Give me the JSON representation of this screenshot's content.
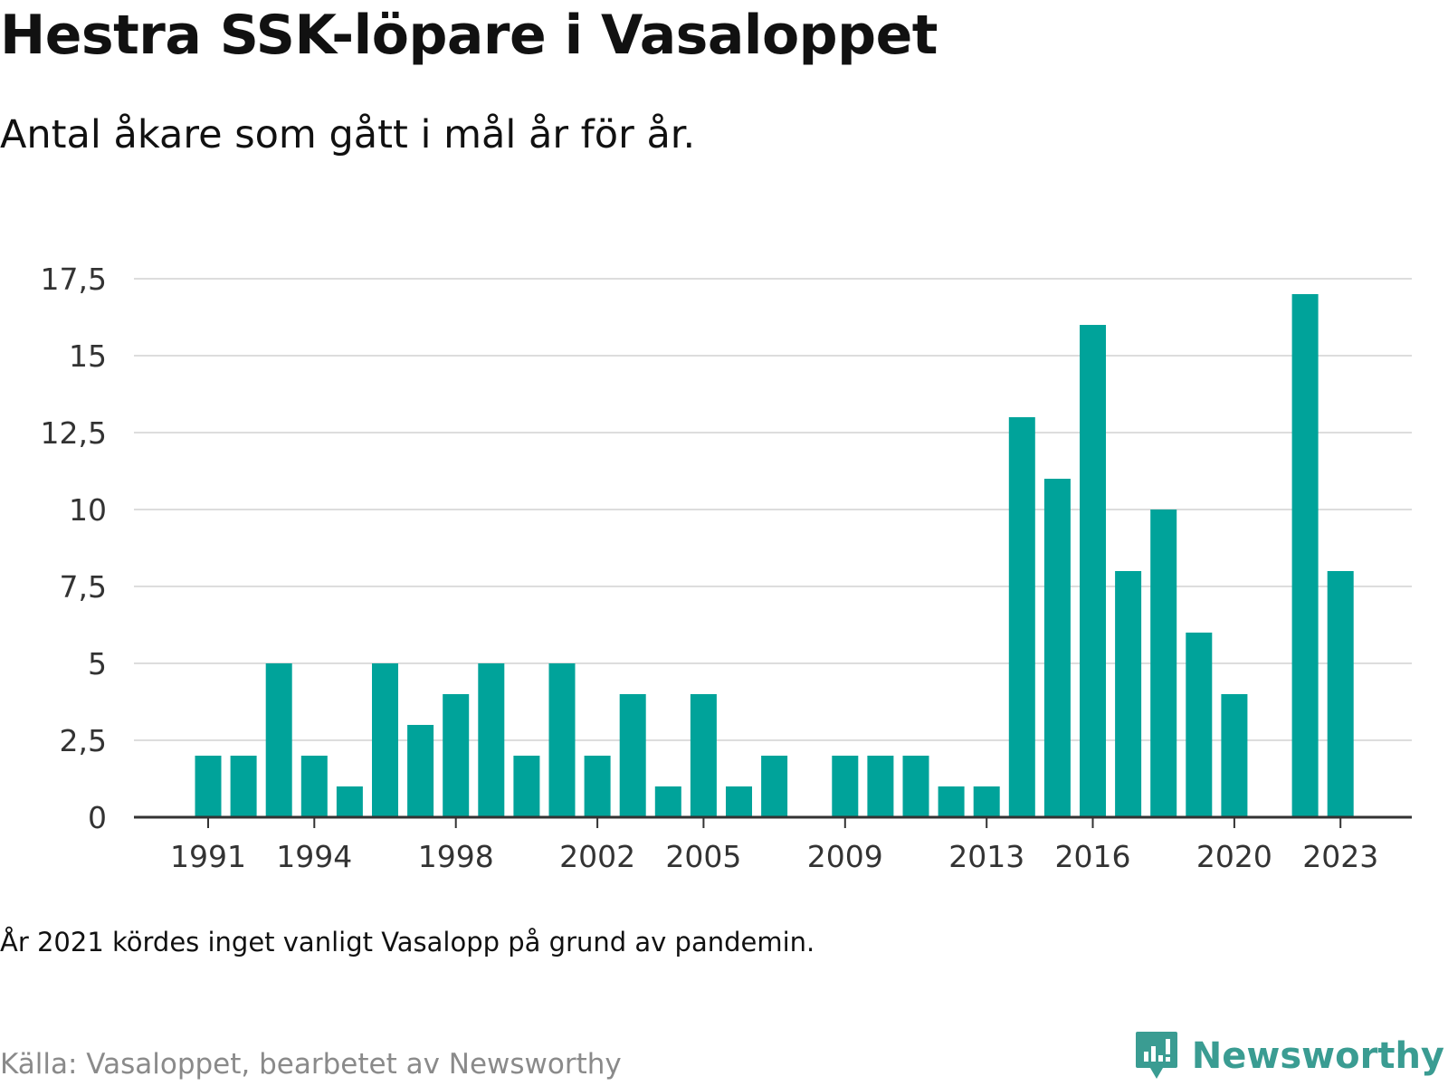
{
  "header": {
    "title": "Hestra SSK-löpare i Vasaloppet",
    "subtitle": "Antal åkare som gått i mål år för år."
  },
  "footer": {
    "note": "År 2021 kördes inget vanligt Vasalopp på grund av pandemin.",
    "source": "Källa: Vasaloppet, bearbetet av Newsworthy",
    "brand": "Newsworthy",
    "brand_icon": "newsworthy-logo-icon"
  },
  "colors": {
    "bar": "#00a39a",
    "grid": "#dddddd",
    "axis": "#333333",
    "brand": "#3a9c92"
  },
  "chart_data": {
    "type": "bar",
    "title": "Hestra SSK-löpare i Vasaloppet",
    "subtitle": "Antal åkare som gått i mål år för år.",
    "xlabel": "",
    "ylabel": "",
    "categories": [
      1991,
      1992,
      1993,
      1994,
      1995,
      1996,
      1997,
      1998,
      1999,
      2000,
      2001,
      2002,
      2003,
      2004,
      2005,
      2006,
      2007,
      2008,
      2009,
      2010,
      2011,
      2012,
      2013,
      2014,
      2015,
      2016,
      2017,
      2018,
      2019,
      2020,
      2021,
      2022,
      2023
    ],
    "values": [
      2,
      2,
      5,
      2,
      1,
      5,
      3,
      4,
      5,
      2,
      5,
      2,
      4,
      1,
      4,
      1,
      2,
      0,
      2,
      2,
      2,
      1,
      1,
      13,
      11,
      16,
      8,
      10,
      6,
      4,
      null,
      17,
      8
    ],
    "ylim": [
      0,
      17.5
    ],
    "yticks": [
      0,
      2.5,
      5,
      7.5,
      10,
      12.5,
      15,
      17.5
    ],
    "ytick_labels": [
      "0",
      "2,5",
      "5",
      "7,5",
      "10",
      "12,5",
      "15",
      "17,5"
    ],
    "xticks": [
      1991,
      1994,
      1998,
      2002,
      2005,
      2009,
      2013,
      2016,
      2020,
      2023
    ],
    "xtick_labels": [
      "1991",
      "1994",
      "1998",
      "2002",
      "2005",
      "2009",
      "2013",
      "2016",
      "2020",
      "2023"
    ],
    "grid": true,
    "legend": "none"
  }
}
